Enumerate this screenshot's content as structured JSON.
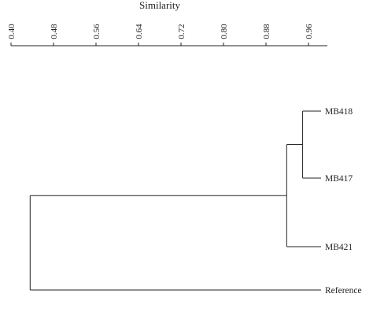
{
  "chart_data": {
    "type": "dendrogram",
    "title": "Similarity",
    "axis": {
      "position": "top",
      "range": [
        0.4,
        0.96
      ],
      "ticks": [
        "0.40",
        "0.48",
        "0.56",
        "0.64",
        "0.72",
        "0.80",
        "0.88",
        "0.96"
      ]
    },
    "leaves": [
      "MB418",
      "MB417",
      "MB421",
      "Reference"
    ],
    "merges": [
      {
        "a": "MB418",
        "b": "MB417",
        "similarity": 0.949
      },
      {
        "a": "MB418+MB417",
        "b": "MB421",
        "similarity": 0.919
      },
      {
        "a": "MB418+MB417+MB421",
        "b": "Reference",
        "similarity": 0.436
      }
    ]
  }
}
